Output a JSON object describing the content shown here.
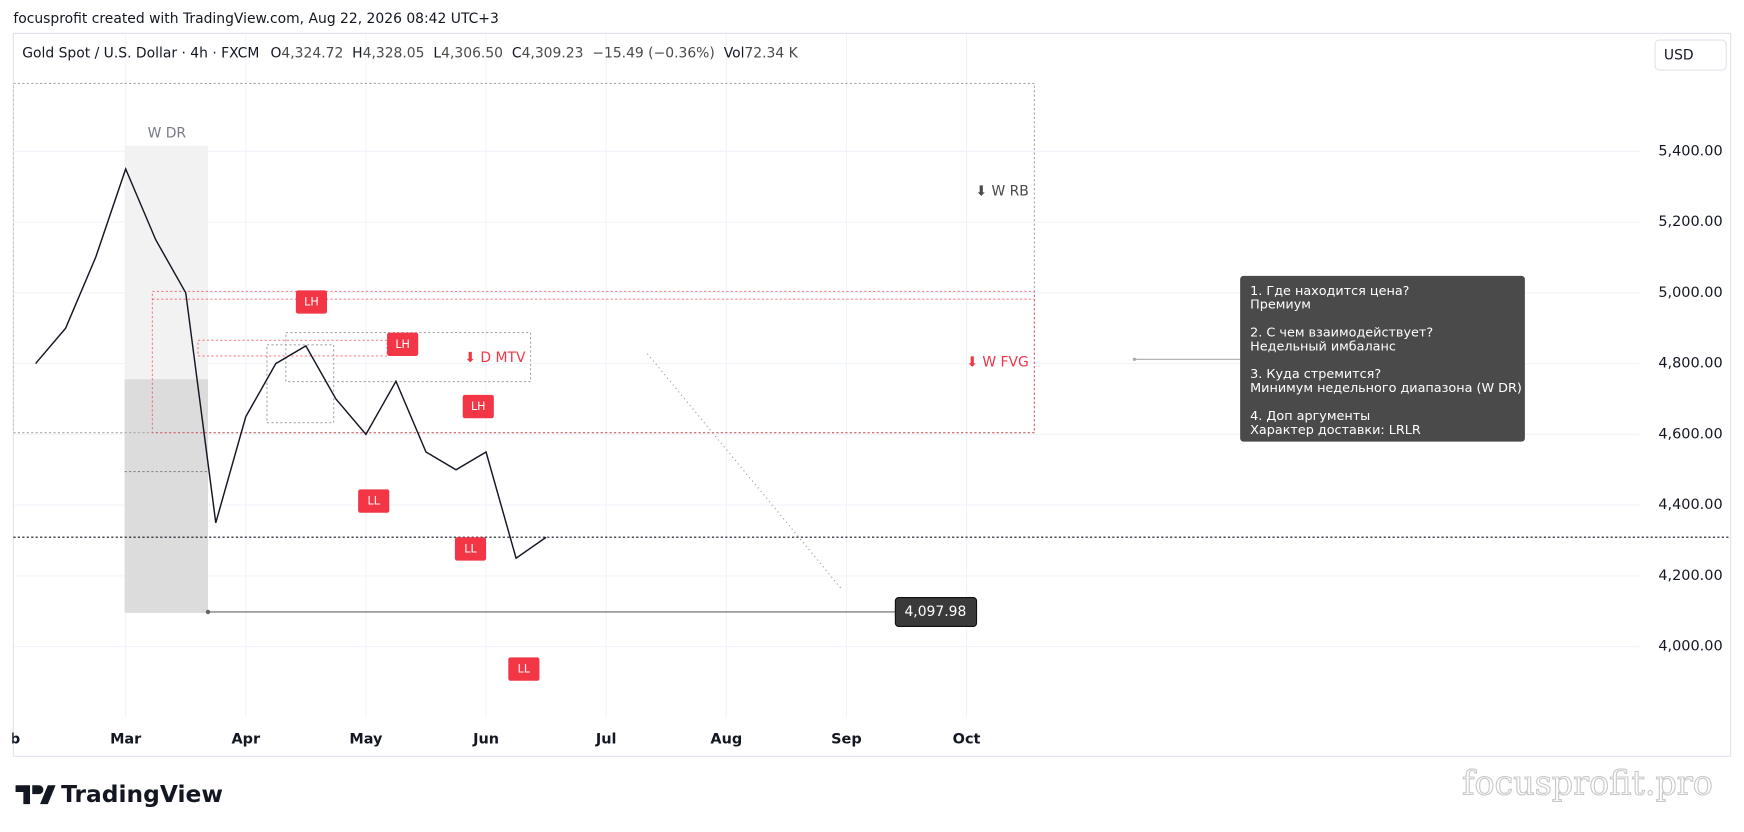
{
  "header": {
    "title": "focusprofit created with TradingView.com, Aug 22, 2026 08:42 UTC+3",
    "ohlc": [
      {
        "label": "O",
        "value": "4,324.72"
      },
      {
        "label": "H",
        "value": "4,328.05"
      },
      {
        "label": "L",
        "value": "4,306.50"
      },
      {
        "label": "C",
        "value": "4,309.23"
      }
    ],
    "change": "−15.49 (−0.36%)",
    "volume": {
      "label": "Vol",
      "value": "72.34 K"
    },
    "currency": "USD"
  },
  "chart_data": {
    "type": "line",
    "categories": [
      "Feb",
      null,
      null,
      null,
      "Mar",
      null,
      null,
      null,
      "Apr",
      null,
      null,
      null,
      "May",
      null,
      null,
      null,
      "Jun",
      null,
      null,
      null,
      "Jul",
      null,
      null,
      null,
      "Aug",
      null,
      null,
      null,
      "Sep",
      null,
      null,
      null,
      "Oct"
    ],
    "series": [
      {
        "name": "Gold Spot / U.S. Dollar · 4h · FXCM",
        "color": "#131722",
        "values": [
          null,
          4800,
          4900,
          5100,
          5350,
          5150,
          5000,
          4350,
          4650,
          4800,
          4850,
          4700,
          4600,
          4750,
          4550,
          4500,
          4550,
          4250,
          4309.23,
          null,
          null,
          null,
          null,
          null,
          null,
          null,
          null,
          null,
          null,
          null,
          null,
          null,
          null
        ]
      }
    ],
    "ylim": [
      3800,
      5730
    ],
    "yticks": [
      {
        "value": 4000,
        "label": "4,000.00"
      },
      {
        "value": 4200,
        "label": "4,200.00"
      },
      {
        "value": 4400,
        "label": "4,400.00"
      },
      {
        "value": 4600,
        "label": "4,600.00"
      },
      {
        "value": 4800,
        "label": "4,800.00"
      },
      {
        "value": 5000,
        "label": "5,000.00"
      },
      {
        "value": 5200,
        "label": "5,200.00"
      },
      {
        "value": 5400,
        "label": "5,400.00"
      }
    ],
    "grid": true,
    "level": {
      "value": 4097.98,
      "label": "4,097.98"
    },
    "annotations": {
      "w_dr": "W DR",
      "w_rb": "⬇ W RB",
      "d_mtv": "⬇ D MTV",
      "w_fvg": "⬇ W FVG",
      "lh": [
        "LH",
        "LH",
        "LH"
      ],
      "ll": [
        "LL",
        "LL",
        "LL"
      ]
    }
  },
  "tooltip": [
    {
      "q": "1. Где находится цена?",
      "a": "Премиум"
    },
    {
      "q": "2. С чем взаимодействует?",
      "a": "Недельный имбаланс"
    },
    {
      "q": "3. Куда стремится?",
      "a": "Минимум недельного диапазона  (W DR)"
    },
    {
      "q": "4. Доп аргументы",
      "a": "Характер доставки: LRLR"
    }
  ],
  "footer": {
    "logo": "TradingView",
    "watermark": "focusprofit.pro"
  }
}
